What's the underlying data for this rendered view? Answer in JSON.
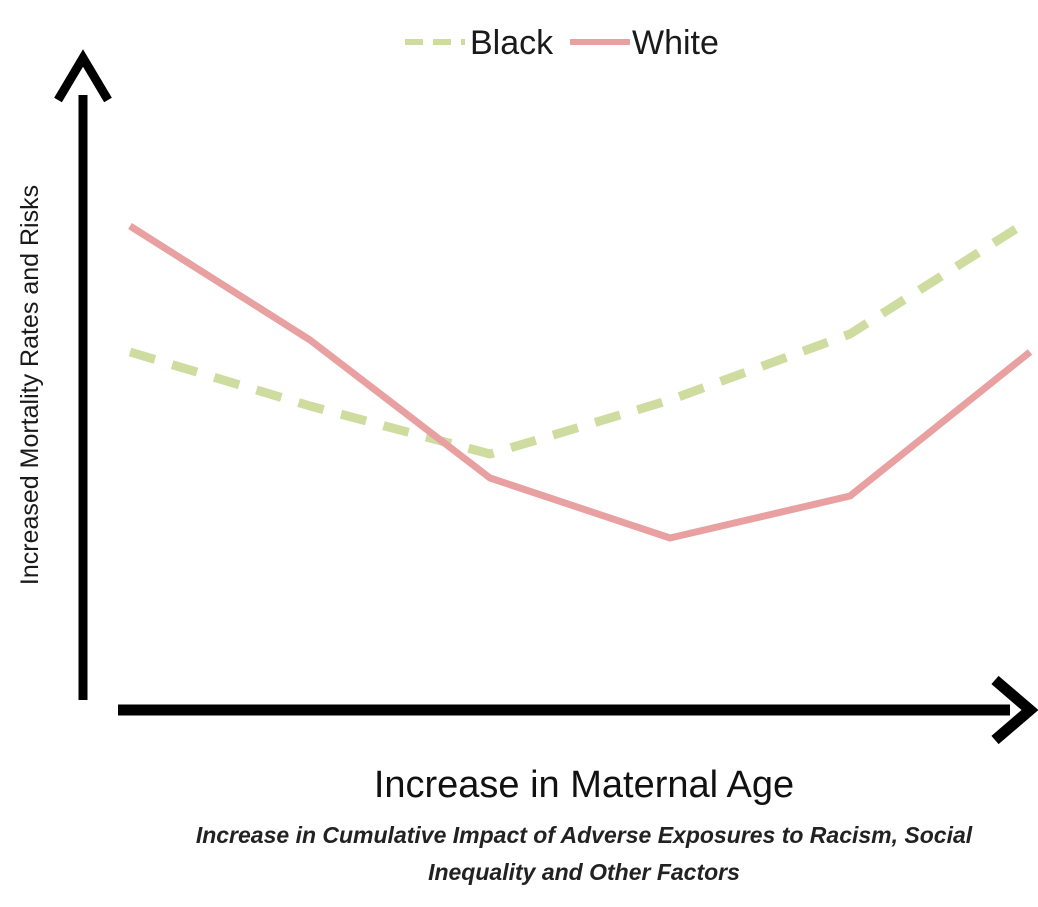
{
  "chart_data": {
    "type": "line",
    "title": "",
    "xlabel": "Increase in Maternal Age",
    "ylabel": "Increased Mortality Rates and Risks",
    "annotation_lines": [
      "Increase in Cumulative Impact of Adverse Exposures to Racism, Social",
      "Inequality and Other Factors"
    ],
    "x": [
      0,
      1,
      2,
      3,
      4,
      5
    ],
    "xlim": [
      0,
      5
    ],
    "ylim": [
      0,
      10
    ],
    "grid": false,
    "legend_position": "top-center",
    "series": [
      {
        "name": "Black",
        "style": "dashed",
        "color": "#cfdca0",
        "values": [
          5.8,
          4.9,
          4.1,
          5.0,
          6.1,
          8.0
        ]
      },
      {
        "name": "White",
        "style": "solid",
        "color": "#e8a0a0",
        "values": [
          7.9,
          6.0,
          3.7,
          2.7,
          3.4,
          5.8
        ]
      }
    ]
  }
}
